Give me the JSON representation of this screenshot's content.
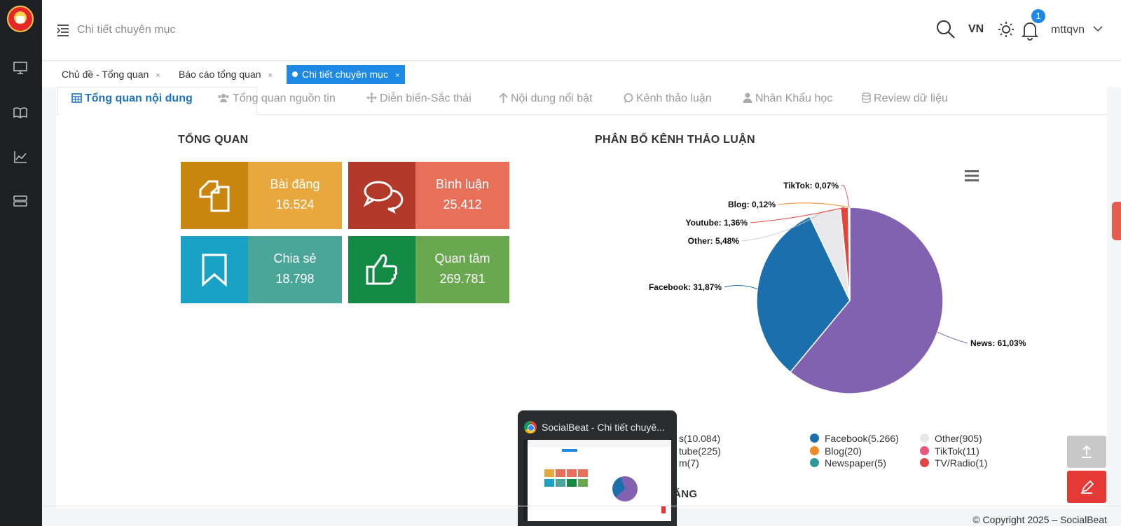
{
  "header": {
    "title": "Chi tiết chuyên mục",
    "lang": "VN",
    "notification_count": "1",
    "user": "mttqvn"
  },
  "page_tabs": [
    {
      "label": "Chủ đề - Tổng quan",
      "close": "×"
    },
    {
      "label": "Báo cáo tổng quan",
      "close": "×"
    },
    {
      "label": "Chi tiết chuyên mục",
      "close": "×",
      "active": true
    }
  ],
  "content_tabs": [
    {
      "label": "Tổng quan nội dung",
      "icon": "calendar-icon",
      "active": true
    },
    {
      "label": "Tổng quan nguồn tin",
      "icon": "users-icon"
    },
    {
      "label": "Diễn biến-Sắc thái",
      "icon": "move-icon"
    },
    {
      "label": "Nội dung nổi bật",
      "icon": "arrow-up-icon"
    },
    {
      "label": "Kênh thảo luận",
      "icon": "comment-icon"
    },
    {
      "label": "Nhân Khẩu học",
      "icon": "user-icon"
    },
    {
      "label": "Review dữ liệu",
      "icon": "database-icon"
    }
  ],
  "overview": {
    "title": "TỔNG QUAN",
    "stats": [
      {
        "label": "Bài đăng",
        "value": "16.524",
        "icon": "copy-icon",
        "icon_bg": "#c8860f",
        "bg": "#e8a83e"
      },
      {
        "label": "Bình luận",
        "value": "25.412",
        "icon": "comments-icon",
        "icon_bg": "#b33a2b",
        "bg": "#e8705a"
      },
      {
        "label": "Chia sẻ",
        "value": "18.798",
        "icon": "bookmark-icon",
        "icon_bg": "#1aa2c6",
        "bg": "#4ba69a"
      },
      {
        "label": "Quan tâm",
        "value": "269.781",
        "icon": "thumbs-up-icon",
        "icon_bg": "#138a43",
        "bg": "#6aa84f"
      }
    ]
  },
  "channel_section": {
    "title": "PHÂN BỐ KÊNH THẢO LUẬN"
  },
  "chart_data": {
    "type": "pie",
    "slices": [
      {
        "name": "News",
        "percent": 61.03,
        "label": "News: 61,03%",
        "color": "#8262b0"
      },
      {
        "name": "Facebook",
        "percent": 31.87,
        "label": "Facebook: 31,87%",
        "color": "#1b6fad"
      },
      {
        "name": "Other",
        "percent": 5.48,
        "label": "Other: 5,48%",
        "color": "#e8e8ea"
      },
      {
        "name": "Youtube",
        "percent": 1.36,
        "label": "Youtube: 1,36%",
        "color": "#e0463a"
      },
      {
        "name": "Blog",
        "percent": 0.12,
        "label": "Blog: 0,12%",
        "color": "#ef8a2a"
      },
      {
        "name": "TikTok",
        "percent": 0.07,
        "label": "TikTok: 0,07%",
        "color": "#e8567c"
      }
    ],
    "legend": [
      {
        "text": "s(10.084)",
        "color": "#8262b0"
      },
      {
        "text": "Facebook(5.266)",
        "color": "#1b6fad"
      },
      {
        "text": "Other(905)",
        "color": "#e8e8ea"
      },
      {
        "text": "tube(225)",
        "color": "#e0463a"
      },
      {
        "text": "Blog(20)",
        "color": "#ef8a2a"
      },
      {
        "text": "TikTok(11)",
        "color": "#e8567c"
      },
      {
        "text": "m(7)",
        "color": "#2b8a87"
      },
      {
        "text": "Newspaper(5)",
        "color": "#2b9a96"
      },
      {
        "text": "TV/Radio(1)",
        "color": "#e04747"
      }
    ]
  },
  "partial_section_title": "ĐĂNG",
  "popup": {
    "title": "SocialBeat - Chi tiết chuyê..."
  },
  "footer": "© Copyright 2025 – SocialBeat"
}
